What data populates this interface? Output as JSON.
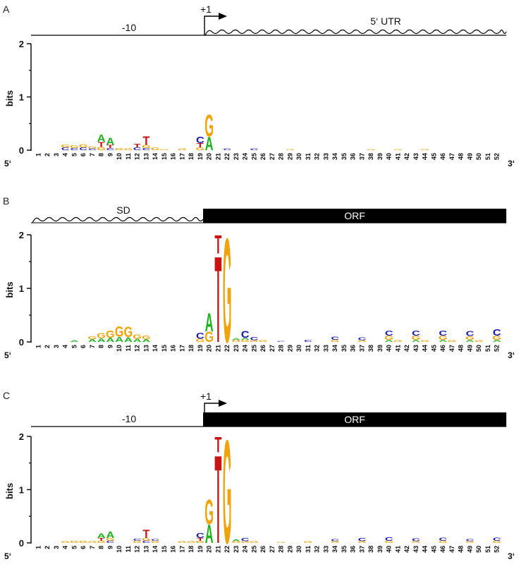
{
  "colors": {
    "A": "#1fb21f",
    "C": "#1a1ab3",
    "G": "#f0a30a",
    "T": "#c81414",
    "axis": "#000000"
  },
  "chart_data": [
    {
      "type": "sequence-logo",
      "panel": "A",
      "track": {
        "left_label": "-10",
        "right_label": "5‘ UTR",
        "tss_label": "+1",
        "left_style": "line",
        "right_style": "wave"
      },
      "ylabel": "bits",
      "ylim": [
        0,
        2
      ],
      "yticks": [
        "0",
        "1",
        "2"
      ],
      "start_label": "5‘",
      "end_label": "3‘",
      "positions": 52,
      "stacks": [
        {
          "pos": 4,
          "letters": [
            [
              "C",
              0.05
            ],
            [
              "G",
              0.05
            ]
          ]
        },
        {
          "pos": 5,
          "letters": [
            [
              "C",
              0.04
            ],
            [
              "G",
              0.05
            ]
          ]
        },
        {
          "pos": 6,
          "letters": [
            [
              "C",
              0.05
            ],
            [
              "G",
              0.06
            ]
          ]
        },
        {
          "pos": 7,
          "letters": [
            [
              "C",
              0.03
            ],
            [
              "G",
              0.04
            ]
          ]
        },
        {
          "pos": 8,
          "letters": [
            [
              "G",
              0.06
            ],
            [
              "T",
              0.1
            ],
            [
              "A",
              0.14
            ]
          ]
        },
        {
          "pos": 9,
          "letters": [
            [
              "C",
              0.04
            ],
            [
              "T",
              0.06
            ],
            [
              "A",
              0.14
            ]
          ]
        },
        {
          "pos": 10,
          "letters": [
            [
              "G",
              0.04
            ]
          ]
        },
        {
          "pos": 11,
          "letters": [
            [
              "G",
              0.03
            ]
          ]
        },
        {
          "pos": 12,
          "letters": [
            [
              "C",
              0.05
            ],
            [
              "T",
              0.07
            ]
          ]
        },
        {
          "pos": 13,
          "letters": [
            [
              "C",
              0.04
            ],
            [
              "G",
              0.06
            ],
            [
              "T",
              0.17
            ]
          ]
        },
        {
          "pos": 14,
          "letters": [
            [
              "G",
              0.05
            ]
          ]
        },
        {
          "pos": 15,
          "letters": [
            [
              "G",
              0.02
            ]
          ]
        },
        {
          "pos": 17,
          "letters": [
            [
              "G",
              0.03
            ]
          ]
        },
        {
          "pos": 19,
          "letters": [
            [
              "G",
              0.05
            ],
            [
              "T",
              0.08
            ],
            [
              "C",
              0.12
            ]
          ]
        },
        {
          "pos": 20,
          "letters": [
            [
              "A",
              0.26
            ],
            [
              "G",
              0.42
            ]
          ]
        },
        {
          "pos": 22,
          "letters": [
            [
              "C",
              0.03
            ]
          ]
        },
        {
          "pos": 25,
          "letters": [
            [
              "C",
              0.03
            ]
          ]
        },
        {
          "pos": 29,
          "letters": [
            [
              "G",
              0.02
            ]
          ]
        },
        {
          "pos": 38,
          "letters": [
            [
              "G",
              0.02
            ]
          ]
        },
        {
          "pos": 41,
          "letters": [
            [
              "G",
              0.02
            ]
          ]
        },
        {
          "pos": 44,
          "letters": [
            [
              "G",
              0.02
            ]
          ]
        }
      ]
    },
    {
      "type": "sequence-logo",
      "panel": "B",
      "track": {
        "left_label": "SD",
        "right_label": "ORF",
        "tss_label": "",
        "left_style": "wave",
        "right_style": "box"
      },
      "ylabel": "bits",
      "ylim": [
        0,
        2
      ],
      "yticks": [
        "0",
        "1",
        "2"
      ],
      "start_label": "5‘",
      "end_label": "3‘",
      "positions": 52,
      "stacks": [
        {
          "pos": 5,
          "letters": [
            [
              "A",
              0.03
            ]
          ]
        },
        {
          "pos": 7,
          "letters": [
            [
              "A",
              0.05
            ],
            [
              "G",
              0.05
            ]
          ]
        },
        {
          "pos": 8,
          "letters": [
            [
              "A",
              0.07
            ],
            [
              "G",
              0.1
            ]
          ]
        },
        {
          "pos": 9,
          "letters": [
            [
              "A",
              0.08
            ],
            [
              "G",
              0.14
            ]
          ]
        },
        {
          "pos": 10,
          "letters": [
            [
              "A",
              0.1
            ],
            [
              "G",
              0.2
            ]
          ]
        },
        {
          "pos": 11,
          "letters": [
            [
              "A",
              0.09
            ],
            [
              "G",
              0.2
            ]
          ]
        },
        {
          "pos": 12,
          "letters": [
            [
              "A",
              0.06
            ],
            [
              "G",
              0.08
            ]
          ]
        },
        {
          "pos": 13,
          "letters": [
            [
              "A",
              0.05
            ],
            [
              "G",
              0.07
            ]
          ]
        },
        {
          "pos": 19,
          "letters": [
            [
              "G",
              0.06
            ],
            [
              "C",
              0.11
            ]
          ]
        },
        {
          "pos": 20,
          "letters": [
            [
              "G",
              0.2
            ],
            [
              "A",
              0.35
            ]
          ]
        },
        {
          "pos": 21,
          "letters": [
            [
              "T",
              1.65
            ],
            [
              "T",
              0.35
            ]
          ]
        },
        {
          "pos": 22,
          "letters": [
            [
              "G",
              2.0
            ]
          ]
        },
        {
          "pos": 23,
          "letters": [
            [
              "G",
              0.03
            ],
            [
              "A",
              0.04
            ]
          ]
        },
        {
          "pos": 24,
          "letters": [
            [
              "G",
              0.04
            ],
            [
              "A",
              0.04
            ],
            [
              "C",
              0.13
            ]
          ]
        },
        {
          "pos": 25,
          "letters": [
            [
              "G",
              0.03
            ],
            [
              "C",
              0.06
            ]
          ]
        },
        {
          "pos": 26,
          "letters": [
            [
              "G",
              0.03
            ]
          ]
        },
        {
          "pos": 28,
          "letters": [
            [
              "C",
              0.02
            ]
          ]
        },
        {
          "pos": 31,
          "letters": [
            [
              "C",
              0.04
            ]
          ]
        },
        {
          "pos": 34,
          "letters": [
            [
              "G",
              0.04
            ],
            [
              "C",
              0.06
            ]
          ]
        },
        {
          "pos": 37,
          "letters": [
            [
              "G",
              0.03
            ],
            [
              "C",
              0.05
            ]
          ]
        },
        {
          "pos": 40,
          "letters": [
            [
              "A",
              0.04
            ],
            [
              "G",
              0.08
            ],
            [
              "C",
              0.1
            ]
          ]
        },
        {
          "pos": 41,
          "letters": [
            [
              "G",
              0.03
            ]
          ]
        },
        {
          "pos": 43,
          "letters": [
            [
              "A",
              0.04
            ],
            [
              "G",
              0.08
            ],
            [
              "C",
              0.1
            ]
          ]
        },
        {
          "pos": 44,
          "letters": [
            [
              "G",
              0.03
            ]
          ]
        },
        {
          "pos": 46,
          "letters": [
            [
              "A",
              0.04
            ],
            [
              "G",
              0.08
            ],
            [
              "C",
              0.1
            ]
          ]
        },
        {
          "pos": 47,
          "letters": [
            [
              "G",
              0.03
            ]
          ]
        },
        {
          "pos": 49,
          "letters": [
            [
              "A",
              0.04
            ],
            [
              "G",
              0.07
            ],
            [
              "C",
              0.1
            ]
          ]
        },
        {
          "pos": 50,
          "letters": [
            [
              "G",
              0.03
            ]
          ]
        },
        {
          "pos": 52,
          "letters": [
            [
              "A",
              0.04
            ],
            [
              "G",
              0.08
            ],
            [
              "C",
              0.12
            ]
          ]
        }
      ]
    },
    {
      "type": "sequence-logo",
      "panel": "C",
      "track": {
        "left_label": "-10",
        "right_label": "ORF",
        "tss_label": "+1",
        "left_style": "line",
        "right_style": "box"
      },
      "ylabel": "bits",
      "ylim": [
        0,
        2
      ],
      "yticks": [
        "0",
        "1",
        "2"
      ],
      "start_label": "5‘",
      "end_label": "3‘",
      "positions": 52,
      "stacks": [
        {
          "pos": 4,
          "letters": [
            [
              "G",
              0.03
            ]
          ]
        },
        {
          "pos": 5,
          "letters": [
            [
              "G",
              0.04
            ]
          ]
        },
        {
          "pos": 6,
          "letters": [
            [
              "G",
              0.04
            ]
          ]
        },
        {
          "pos": 7,
          "letters": [
            [
              "G",
              0.03
            ]
          ]
        },
        {
          "pos": 8,
          "letters": [
            [
              "G",
              0.04
            ],
            [
              "T",
              0.05
            ],
            [
              "A",
              0.09
            ]
          ]
        },
        {
          "pos": 9,
          "letters": [
            [
              "C",
              0.04
            ],
            [
              "G",
              0.05
            ],
            [
              "A",
              0.12
            ]
          ]
        },
        {
          "pos": 12,
          "letters": [
            [
              "G",
              0.04
            ],
            [
              "C",
              0.04
            ]
          ]
        },
        {
          "pos": 13,
          "letters": [
            [
              "C",
              0.04
            ],
            [
              "G",
              0.05
            ],
            [
              "T",
              0.16
            ]
          ]
        },
        {
          "pos": 14,
          "letters": [
            [
              "G",
              0.04
            ],
            [
              "C",
              0.03
            ]
          ]
        },
        {
          "pos": 17,
          "letters": [
            [
              "G",
              0.03
            ]
          ]
        },
        {
          "pos": 18,
          "letters": [
            [
              "G",
              0.03
            ]
          ]
        },
        {
          "pos": 19,
          "letters": [
            [
              "G",
              0.04
            ],
            [
              "T",
              0.05
            ],
            [
              "C",
              0.1
            ]
          ]
        },
        {
          "pos": 20,
          "letters": [
            [
              "A",
              0.35
            ],
            [
              "G",
              0.48
            ]
          ]
        },
        {
          "pos": 21,
          "letters": [
            [
              "T",
              1.7
            ],
            [
              "T",
              0.3
            ]
          ]
        },
        {
          "pos": 22,
          "letters": [
            [
              "G",
              2.0
            ]
          ]
        },
        {
          "pos": 23,
          "letters": [
            [
              "G",
              0.03
            ],
            [
              "A",
              0.03
            ]
          ]
        },
        {
          "pos": 24,
          "letters": [
            [
              "G",
              0.03
            ],
            [
              "C",
              0.06
            ]
          ]
        },
        {
          "pos": 25,
          "letters": [
            [
              "G",
              0.03
            ]
          ]
        },
        {
          "pos": 28,
          "letters": [
            [
              "G",
              0.02
            ]
          ]
        },
        {
          "pos": 31,
          "letters": [
            [
              "G",
              0.03
            ]
          ]
        },
        {
          "pos": 34,
          "letters": [
            [
              "G",
              0.03
            ],
            [
              "C",
              0.04
            ]
          ]
        },
        {
          "pos": 37,
          "letters": [
            [
              "G",
              0.03
            ],
            [
              "C",
              0.06
            ]
          ]
        },
        {
          "pos": 40,
          "letters": [
            [
              "G",
              0.04
            ],
            [
              "C",
              0.07
            ]
          ]
        },
        {
          "pos": 43,
          "letters": [
            [
              "G",
              0.03
            ],
            [
              "C",
              0.05
            ]
          ]
        },
        {
          "pos": 46,
          "letters": [
            [
              "G",
              0.04
            ],
            [
              "C",
              0.06
            ]
          ]
        },
        {
          "pos": 49,
          "letters": [
            [
              "G",
              0.03
            ],
            [
              "C",
              0.04
            ]
          ]
        },
        {
          "pos": 52,
          "letters": [
            [
              "G",
              0.04
            ],
            [
              "C",
              0.06
            ]
          ]
        }
      ]
    }
  ]
}
